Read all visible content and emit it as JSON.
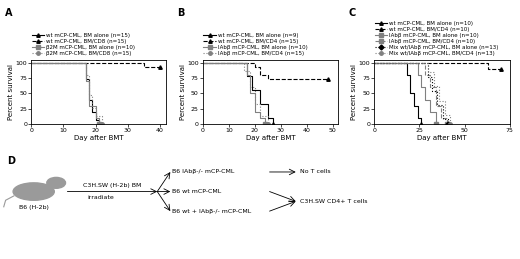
{
  "chart_data": [
    {
      "type": "step",
      "title": "A",
      "x_label": "Day after BMT",
      "y_label": "Percent survival",
      "xlim": [
        0,
        42
      ],
      "ylim": [
        0,
        105
      ],
      "xticks": [
        0,
        10,
        20,
        30,
        40
      ],
      "yticks": [
        0,
        25,
        50,
        75,
        100
      ],
      "series": [
        {
          "name": "wt mCP-CML, BM alone (n=15)",
          "color": "#000000",
          "line_style": "solid",
          "marker": "triangle",
          "x": [
            0,
            17,
            18,
            19,
            20,
            21
          ],
          "values": [
            100,
            73,
            40,
            20,
            7,
            0
          ]
        },
        {
          "name": "wt mCP-CML, BM/CD8 (n=15)",
          "color": "#000000",
          "line_style": "dashed",
          "marker": "triangle",
          "x": [
            0,
            35,
            40
          ],
          "values": [
            100,
            93,
            93
          ]
        },
        {
          "name": "β2M mCP-CML, BM alone (n=10)",
          "color": "#808080",
          "line_style": "solid",
          "marker": "square",
          "x": [
            0,
            17,
            18,
            20,
            21
          ],
          "values": [
            100,
            70,
            30,
            10,
            0
          ]
        },
        {
          "name": "β2M mCP-CML, BM/CD8 (n=15)",
          "color": "#808080",
          "line_style": "dotted",
          "marker": "circle",
          "x": [
            0,
            17,
            18,
            19,
            20,
            22
          ],
          "values": [
            100,
            80,
            47,
            27,
            13,
            0
          ]
        }
      ]
    },
    {
      "type": "step",
      "title": "B",
      "x_label": "Day after BMT",
      "y_label": "Percent survival",
      "xlim": [
        0,
        52
      ],
      "ylim": [
        0,
        105
      ],
      "xticks": [
        0,
        10,
        20,
        30,
        40,
        50
      ],
      "yticks": [
        0,
        25,
        50,
        75,
        100
      ],
      "series": [
        {
          "name": "wt mCP-CML, BM alone (n=9)",
          "color": "#000000",
          "line_style": "solid",
          "marker": "triangle",
          "x": [
            0,
            17,
            19,
            22,
            25,
            27
          ],
          "values": [
            100,
            78,
            56,
            33,
            11,
            0
          ]
        },
        {
          "name": "wt mCP-CML, BM/CD4 (n=15)",
          "color": "#000000",
          "line_style": "dashed",
          "marker": "triangle",
          "x": [
            0,
            20,
            22,
            25,
            48
          ],
          "values": [
            100,
            93,
            80,
            73,
            73
          ]
        },
        {
          "name": "IAbβ mCP-CML, BM alone (n=10)",
          "color": "#808080",
          "line_style": "solid",
          "marker": "square",
          "x": [
            0,
            17,
            18,
            20,
            22,
            24
          ],
          "values": [
            100,
            80,
            50,
            20,
            10,
            0
          ]
        },
        {
          "name": "IAbβ mCP-CML, BM/CD4 (n=15)",
          "color": "#808080",
          "line_style": "dotted",
          "marker": "circle",
          "x": [
            0,
            16,
            18,
            20,
            22,
            25
          ],
          "values": [
            100,
            87,
            60,
            33,
            13,
            0
          ]
        }
      ]
    },
    {
      "type": "step",
      "title": "C",
      "x_label": "Day after BMT",
      "y_label": "Percent survival",
      "xlim": [
        0,
        75
      ],
      "ylim": [
        0,
        105
      ],
      "xticks": [
        0,
        25,
        50,
        75
      ],
      "yticks": [
        0,
        25,
        50,
        75,
        100
      ],
      "series": [
        {
          "name": "wt mCP-CML, BM alone (n=10)",
          "color": "#000000",
          "line_style": "solid",
          "marker": "triangle",
          "x": [
            0,
            18,
            20,
            22,
            24,
            26
          ],
          "values": [
            100,
            80,
            50,
            30,
            10,
            0
          ]
        },
        {
          "name": "wt mCP-CML, BM/CD4 (n=10)",
          "color": "#000000",
          "line_style": "dashed",
          "marker": "triangle",
          "x": [
            0,
            63,
            70
          ],
          "values": [
            100,
            90,
            90
          ]
        },
        {
          "name": "IAbβ mCP-CML, BM alone (n=10)",
          "color": "#808080",
          "line_style": "solid",
          "marker": "square",
          "x": [
            0,
            24,
            26,
            28,
            31,
            34
          ],
          "values": [
            100,
            80,
            60,
            40,
            20,
            0
          ]
        },
        {
          "name": "IAbβ mCP-CML, BM/CD4 (n=10)",
          "color": "#808080",
          "line_style": "dashed",
          "marker": "square",
          "x": [
            0,
            28,
            31,
            34,
            37,
            40
          ],
          "values": [
            100,
            80,
            60,
            30,
            10,
            0
          ]
        },
        {
          "name": "Mix wt/IAbβ mCP-CML, BM alone (n=13)",
          "color": "#000000",
          "line_style": "dotted",
          "marker": "diamond",
          "x": [
            0,
            30,
            32,
            35,
            38,
            41
          ],
          "values": [
            100,
            77,
            54,
            31,
            8,
            0
          ]
        },
        {
          "name": "Mix wt/IAbβ mCP-CML, BM/CD4 (n=13)",
          "color": "#808080",
          "line_style": "dotted",
          "marker": "circle",
          "x": [
            0,
            30,
            33,
            36,
            39,
            42
          ],
          "values": [
            100,
            85,
            62,
            38,
            15,
            0
          ]
        }
      ]
    }
  ],
  "diagram": {
    "label": "D",
    "host": "B6 (H-2b)",
    "donor": "C3H.SW (H-2b) BM",
    "step": "irradiate",
    "groups": [
      "B6 IAbβ-/- mCP-CML",
      "B6 wt mCP-CML",
      "B6 wt + IAbβ-/- mCP-CML"
    ],
    "treatments": [
      "No T cells",
      "C3H.SW CD4+ T cells"
    ]
  }
}
